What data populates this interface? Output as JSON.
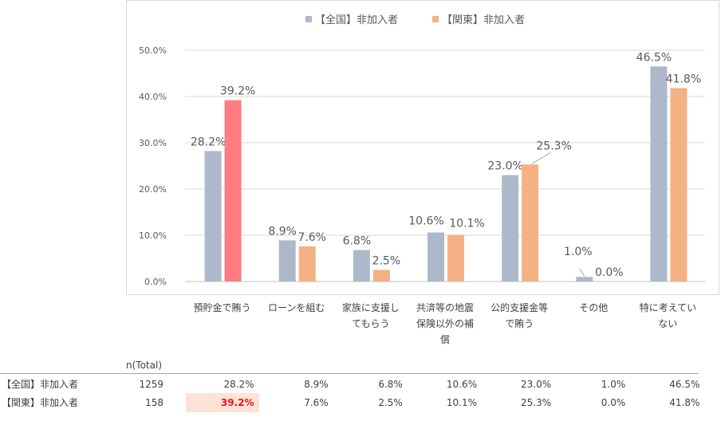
{
  "chart_data": {
    "type": "bar",
    "categories": [
      "預貯金で賄う",
      "ローンを組む",
      "家族に支援し\nてもらう",
      "共済等の地震\n保険以外の補\n償",
      "公的支援金等\nで賄う",
      "その他",
      "特に考えてい\nない"
    ],
    "series": [
      {
        "name": "【全国】非加入者",
        "color": "#adb9ca",
        "values": [
          28.2,
          8.9,
          6.8,
          10.6,
          23.0,
          1.0,
          46.5
        ],
        "labels": [
          "28.2%",
          "8.9%",
          "6.8%",
          "10.6%",
          "23.0%",
          "1.0%",
          "46.5%"
        ]
      },
      {
        "name": "【関東】非加入者",
        "color": "#f4b183",
        "highlight_color": "#ff7c80",
        "highlight_index": 0,
        "values": [
          39.2,
          7.6,
          2.5,
          10.1,
          25.3,
          0.0,
          41.8
        ],
        "labels": [
          "39.2%",
          "7.6%",
          "2.5%",
          "10.1%",
          "25.3%",
          "0.0%",
          "41.8%"
        ]
      }
    ],
    "ylim": [
      0,
      50
    ],
    "yticks": [
      "0.0%",
      "10.0%",
      "20.0%",
      "30.0%",
      "40.0%",
      "50.0%"
    ],
    "grid": true,
    "legend_position": "top"
  },
  "table": {
    "n_header": "n(Total)",
    "rows": [
      {
        "label": "【全国】非加入者",
        "n": "1259",
        "cells": [
          "28.2%",
          "8.9%",
          "6.8%",
          "10.6%",
          "23.0%",
          "1.0%",
          "46.5%"
        ]
      },
      {
        "label": "【関東】非加入者",
        "n": "158",
        "cells": [
          "39.2%",
          "7.6%",
          "2.5%",
          "10.1%",
          "25.3%",
          "0.0%",
          "41.8%"
        ]
      }
    ],
    "highlight": {
      "row": 1,
      "col": 0
    }
  }
}
